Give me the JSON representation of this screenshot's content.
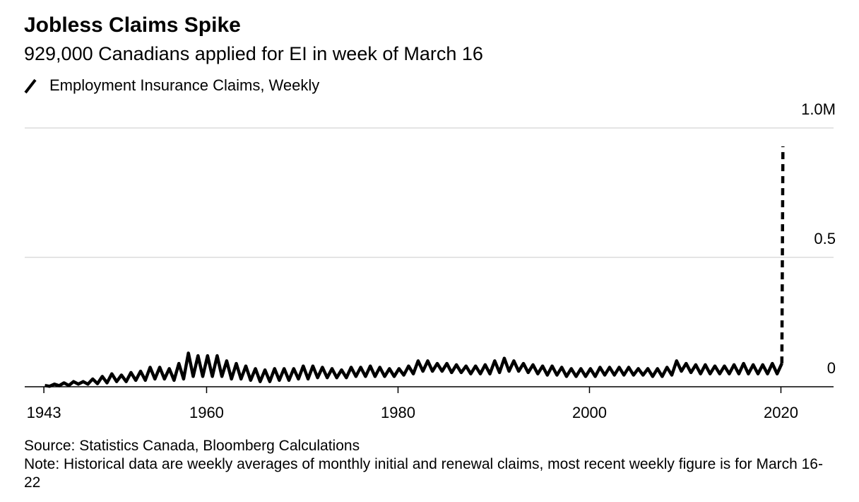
{
  "chart_data": {
    "type": "line",
    "title": "Jobless Claims Spike",
    "subtitle": "929,000 Canadians applied for EI in week of March 16",
    "source": "Source: Statistics Canada, Bloomberg Calculations",
    "note": "Note: Historical data are weekly averages of monthly initial and renewal claims, most recent weekly figure is for March 16-22",
    "xlim": [
      1941,
      2025.5
    ],
    "xticks": [
      1943,
      1960,
      1980,
      2000,
      2020
    ],
    "ylim": [
      0,
      1
    ],
    "yticks": [
      0,
      0.5,
      {
        "value": 1,
        "label": "1.0M"
      }
    ],
    "grid": true,
    "dashed_last_segment": true,
    "x": [
      1943.1,
      1943.6,
      1944.1,
      1944.6,
      1945.1,
      1945.6,
      1946.1,
      1946.6,
      1947.1,
      1947.6,
      1948.1,
      1948.6,
      1949.1,
      1949.6,
      1950.1,
      1950.6,
      1951.1,
      1951.6,
      1952.1,
      1952.6,
      1953.1,
      1953.6,
      1954.1,
      1954.6,
      1955.1,
      1955.6,
      1956.1,
      1956.6,
      1957.1,
      1957.6,
      1958.1,
      1958.6,
      1959.1,
      1959.6,
      1960.1,
      1960.6,
      1961.1,
      1961.6,
      1962.1,
      1962.6,
      1963.1,
      1963.6,
      1964.1,
      1964.6,
      1965.1,
      1965.6,
      1966.1,
      1966.6,
      1967.1,
      1967.6,
      1968.1,
      1968.6,
      1969.1,
      1969.6,
      1970.1,
      1970.6,
      1971.1,
      1971.6,
      1972.1,
      1972.6,
      1973.1,
      1973.6,
      1974.1,
      1974.6,
      1975.1,
      1975.6,
      1976.1,
      1976.6,
      1977.1,
      1977.6,
      1978.1,
      1978.6,
      1979.1,
      1979.6,
      1980.1,
      1980.6,
      1981.1,
      1981.6,
      1982.1,
      1982.6,
      1983.1,
      1983.6,
      1984.1,
      1984.6,
      1985.1,
      1985.6,
      1986.1,
      1986.6,
      1987.1,
      1987.6,
      1988.1,
      1988.6,
      1989.1,
      1989.6,
      1990.1,
      1990.6,
      1991.1,
      1991.6,
      1992.1,
      1992.6,
      1993.1,
      1993.6,
      1994.1,
      1994.6,
      1995.1,
      1995.6,
      1996.1,
      1996.6,
      1997.1,
      1997.6,
      1998.1,
      1998.6,
      1999.1,
      1999.6,
      2000.1,
      2000.6,
      2001.1,
      2001.6,
      2002.1,
      2002.6,
      2003.1,
      2003.6,
      2004.1,
      2004.6,
      2005.1,
      2005.6,
      2006.1,
      2006.6,
      2007.1,
      2007.6,
      2008.1,
      2008.6,
      2009.1,
      2009.6,
      2010.1,
      2010.6,
      2011.1,
      2011.6,
      2012.1,
      2012.6,
      2013.1,
      2013.6,
      2014.1,
      2014.6,
      2015.1,
      2015.6,
      2016.1,
      2016.6,
      2017.1,
      2017.6,
      2018.1,
      2018.6,
      2019.1,
      2019.6,
      2020.1,
      2020.21
    ],
    "series": [
      {
        "name": "Employment Insurance Claims, Weekly",
        "color": "#000000",
        "values": [
          0.005,
          0.002,
          0.01,
          0.004,
          0.015,
          0.005,
          0.02,
          0.01,
          0.02,
          0.01,
          0.03,
          0.012,
          0.04,
          0.015,
          0.05,
          0.02,
          0.045,
          0.02,
          0.055,
          0.025,
          0.06,
          0.025,
          0.075,
          0.03,
          0.075,
          0.03,
          0.07,
          0.025,
          0.09,
          0.03,
          0.13,
          0.04,
          0.12,
          0.04,
          0.12,
          0.04,
          0.12,
          0.04,
          0.1,
          0.03,
          0.09,
          0.03,
          0.08,
          0.025,
          0.07,
          0.02,
          0.065,
          0.02,
          0.07,
          0.025,
          0.07,
          0.025,
          0.07,
          0.03,
          0.08,
          0.03,
          0.08,
          0.035,
          0.075,
          0.035,
          0.07,
          0.035,
          0.065,
          0.035,
          0.075,
          0.04,
          0.075,
          0.04,
          0.08,
          0.04,
          0.075,
          0.04,
          0.07,
          0.04,
          0.07,
          0.045,
          0.08,
          0.05,
          0.1,
          0.06,
          0.1,
          0.06,
          0.09,
          0.06,
          0.09,
          0.055,
          0.085,
          0.055,
          0.08,
          0.05,
          0.08,
          0.05,
          0.085,
          0.05,
          0.1,
          0.055,
          0.11,
          0.06,
          0.1,
          0.06,
          0.09,
          0.055,
          0.085,
          0.05,
          0.08,
          0.045,
          0.08,
          0.045,
          0.075,
          0.04,
          0.07,
          0.04,
          0.07,
          0.04,
          0.07,
          0.04,
          0.075,
          0.045,
          0.075,
          0.045,
          0.075,
          0.045,
          0.075,
          0.045,
          0.07,
          0.045,
          0.07,
          0.04,
          0.07,
          0.04,
          0.075,
          0.045,
          0.1,
          0.06,
          0.09,
          0.055,
          0.085,
          0.05,
          0.085,
          0.05,
          0.08,
          0.05,
          0.08,
          0.05,
          0.085,
          0.05,
          0.09,
          0.05,
          0.085,
          0.05,
          0.085,
          0.05,
          0.09,
          0.05,
          0.09,
          0.929
        ]
      }
    ]
  }
}
